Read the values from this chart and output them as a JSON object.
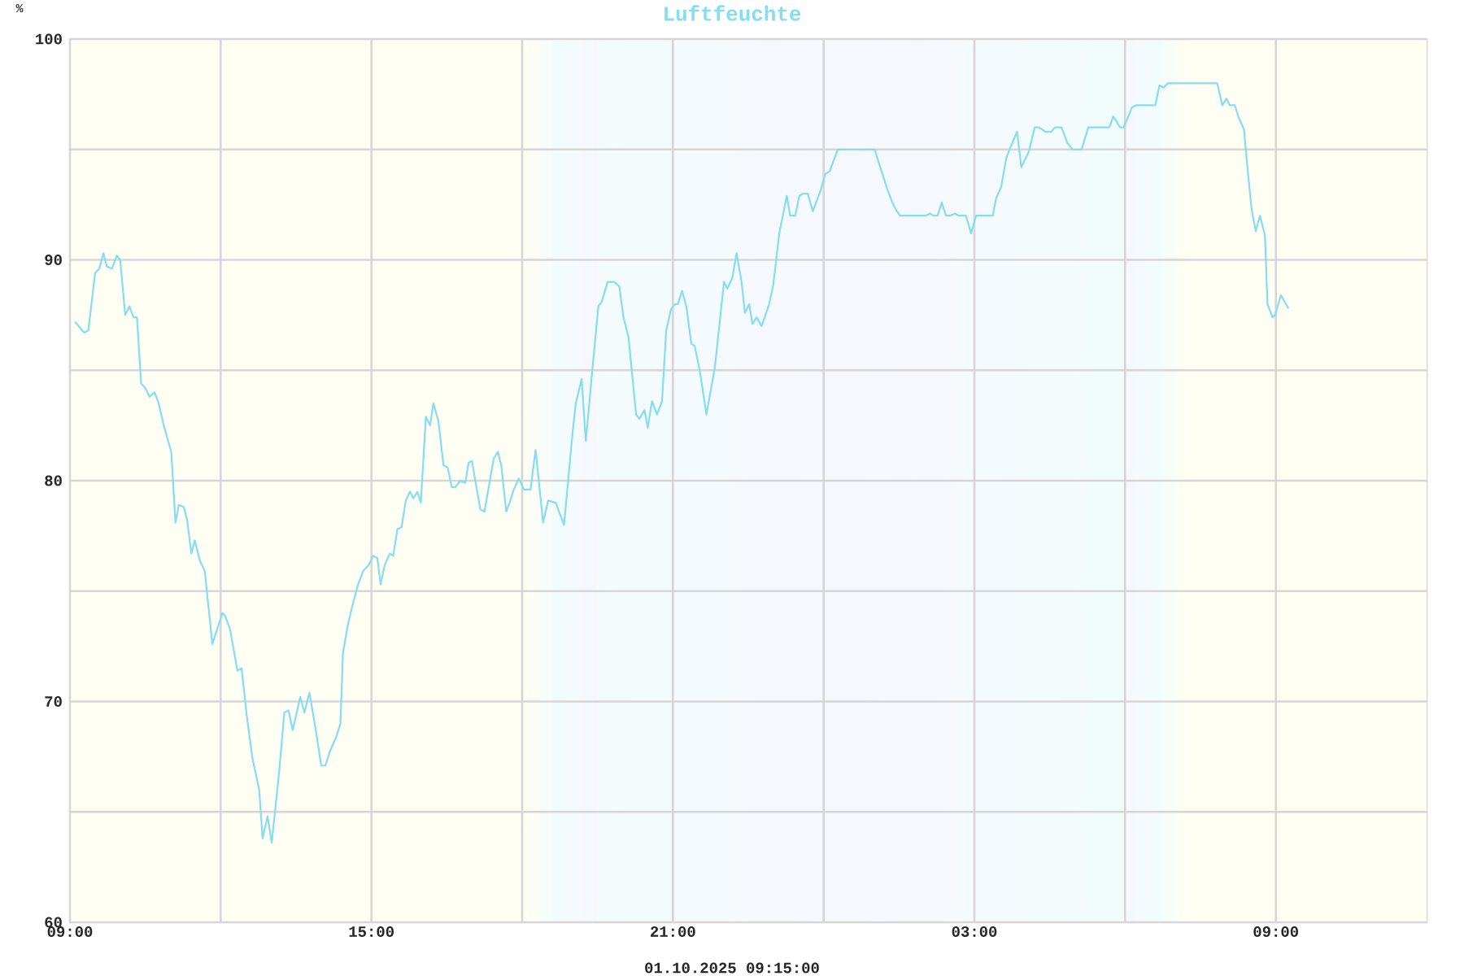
{
  "chart_data": {
    "type": "line",
    "title": "Luftfeuchte",
    "ylabel": "%",
    "xlabel": "01.10.2025 09:15:00",
    "color": "#86dcf2",
    "line_style": "solid",
    "grid": true,
    "xlim": [
      "2025-09-30T09:00",
      "2025-10-01T12:00"
    ],
    "xticks": [
      {
        "value": "2025-09-30T09:00",
        "label": "09:00"
      },
      {
        "value": "2025-09-30T12:00",
        "label": null
      },
      {
        "value": "2025-09-30T15:00",
        "label": "15:00"
      },
      {
        "value": "2025-09-30T18:00",
        "label": null
      },
      {
        "value": "2025-09-30T21:00",
        "label": "21:00"
      },
      {
        "value": "2025-10-01T00:00",
        "label": null
      },
      {
        "value": "2025-10-01T03:00",
        "label": "03:00"
      },
      {
        "value": "2025-10-01T06:00",
        "label": null
      },
      {
        "value": "2025-10-01T09:00",
        "label": "09:00"
      }
    ],
    "ylim": [
      60,
      100
    ],
    "yticks": [
      60,
      {
        "value": 65,
        "label": null
      },
      70,
      {
        "value": 75,
        "label": null
      },
      80,
      {
        "value": 85,
        "label": null
      },
      90,
      {
        "value": 95,
        "label": null
      },
      100
    ],
    "bands": [
      {
        "axis": "x",
        "from": "2025-09-30T09:00",
        "to": "2025-09-30T18:00",
        "color": "#fffff4"
      },
      {
        "axis": "x",
        "from": "2025-09-30T18:00",
        "to": "2025-09-30T19:30",
        "color": "#f3fcfc"
      },
      {
        "axis": "x",
        "from": "2025-09-30T19:30",
        "to": "2025-10-01T06:00",
        "color": "#f6f8fe"
      },
      {
        "axis": "x",
        "from": "2025-10-01T06:00",
        "to": "2025-10-01T07:18",
        "color": "#f3fcfc"
      },
      {
        "axis": "x",
        "from": "2025-10-01T07:18",
        "to": "2025-10-01T12:00",
        "color": "#fffff4"
      }
    ],
    "x": [
      "2025-09-30T09:06",
      "2025-09-30T09:17",
      "2025-09-30T09:22",
      "2025-09-30T09:30",
      "2025-09-30T09:35",
      "2025-09-30T09:40",
      "2025-09-30T09:44",
      "2025-09-30T09:50",
      "2025-09-30T09:56",
      "2025-09-30T10:00",
      "2025-09-30T10:06",
      "2025-09-30T10:11",
      "2025-09-30T10:16",
      "2025-09-30T10:20",
      "2025-09-30T10:25",
      "2025-09-30T10:30",
      "2025-09-30T10:35",
      "2025-09-30T10:41",
      "2025-09-30T10:46",
      "2025-09-30T10:52",
      "2025-09-30T11:01",
      "2025-09-30T11:06",
      "2025-09-30T11:10",
      "2025-09-30T11:16",
      "2025-09-30T11:20",
      "2025-09-30T11:25",
      "2025-09-30T11:29",
      "2025-09-30T11:35",
      "2025-09-30T11:41",
      "2025-09-30T11:50",
      "2025-09-30T11:56",
      "2025-09-30T12:02",
      "2025-09-30T12:05",
      "2025-09-30T12:11",
      "2025-09-30T12:20",
      "2025-09-30T12:25",
      "2025-09-30T12:31",
      "2025-09-30T12:38",
      "2025-09-30T12:46",
      "2025-09-30T12:50",
      "2025-09-30T12:56",
      "2025-09-30T13:01",
      "2025-09-30T13:10",
      "2025-09-30T13:16",
      "2025-09-30T13:21",
      "2025-09-30T13:26",
      "2025-09-30T13:35",
      "2025-09-30T13:40",
      "2025-09-30T13:46",
      "2025-09-30T13:54",
      "2025-09-30T14:00",
      "2025-09-30T14:05",
      "2025-09-30T14:11",
      "2025-09-30T14:18",
      "2025-09-30T14:23",
      "2025-09-30T14:26",
      "2025-09-30T14:32",
      "2025-09-30T14:37",
      "2025-09-30T14:44",
      "2025-09-30T14:50",
      "2025-09-30T14:57",
      "2025-09-30T15:02",
      "2025-09-30T15:07",
      "2025-09-30T15:11",
      "2025-09-30T15:16",
      "2025-09-30T15:22",
      "2025-09-30T15:26",
      "2025-09-30T15:31",
      "2025-09-30T15:36",
      "2025-09-30T15:41",
      "2025-09-30T15:46",
      "2025-09-30T15:50",
      "2025-09-30T15:55",
      "2025-09-30T15:59",
      "2025-09-30T16:05",
      "2025-09-30T16:10",
      "2025-09-30T16:14",
      "2025-09-30T16:20",
      "2025-09-30T16:26",
      "2025-09-30T16:31",
      "2025-09-30T16:36",
      "2025-09-30T16:40",
      "2025-09-30T16:46",
      "2025-09-30T16:52",
      "2025-09-30T16:56",
      "2025-09-30T17:00",
      "2025-09-30T17:10",
      "2025-09-30T17:15",
      "2025-09-30T17:26",
      "2025-09-30T17:31",
      "2025-09-30T17:35",
      "2025-09-30T17:41",
      "2025-09-30T17:45",
      "2025-09-30T17:50",
      "2025-09-30T17:56",
      "2025-09-30T18:02",
      "2025-09-30T18:10",
      "2025-09-30T18:16",
      "2025-09-30T18:25",
      "2025-09-30T18:31",
      "2025-09-30T18:40",
      "2025-09-30T18:50",
      "2025-09-30T19:00",
      "2025-09-30T19:04",
      "2025-09-30T19:11",
      "2025-09-30T19:16",
      "2025-09-30T19:24",
      "2025-09-30T19:31",
      "2025-09-30T19:35",
      "2025-09-30T19:42",
      "2025-09-30T19:50",
      "2025-09-30T19:56",
      "2025-09-30T20:01",
      "2025-09-30T20:07",
      "2025-09-30T20:16",
      "2025-09-30T20:20",
      "2025-09-30T20:26",
      "2025-09-30T20:30",
      "2025-09-30T20:35",
      "2025-09-30T20:41",
      "2025-09-30T20:47",
      "2025-09-30T20:52",
      "2025-09-30T20:58",
      "2025-09-30T21:03",
      "2025-09-30T21:06",
      "2025-09-30T21:11",
      "2025-09-30T21:16",
      "2025-09-30T21:22",
      "2025-09-30T21:26",
      "2025-09-30T21:32",
      "2025-09-30T21:40",
      "2025-09-30T21:50",
      "2025-09-30T22:01",
      "2025-09-30T22:05",
      "2025-09-30T22:11",
      "2025-09-30T22:16",
      "2025-09-30T22:22",
      "2025-09-30T22:26",
      "2025-09-30T22:31",
      "2025-09-30T22:35",
      "2025-09-30T22:40",
      "2025-09-30T22:46",
      "2025-09-30T22:55",
      "2025-09-30T23:00",
      "2025-09-30T23:07",
      "2025-09-30T23:16",
      "2025-09-30T23:20",
      "2025-09-30T23:26",
      "2025-09-30T23:31",
      "2025-09-30T23:35",
      "2025-09-30T23:41",
      "2025-09-30T23:47",
      "2025-09-30T23:51",
      "2025-09-30T23:56",
      "2025-10-01T00:02",
      "2025-10-01T00:07",
      "2025-10-01T00:12",
      "2025-10-01T00:17",
      "2025-10-01T01:01",
      "2025-10-01T01:05",
      "2025-10-01T01:16",
      "2025-10-01T01:22",
      "2025-10-01T01:26",
      "2025-10-01T01:31",
      "2025-10-01T02:02",
      "2025-10-01T02:07",
      "2025-10-01T02:11",
      "2025-10-01T02:16",
      "2025-10-01T02:21",
      "2025-10-01T02:26",
      "2025-10-01T02:31",
      "2025-10-01T02:37",
      "2025-10-01T02:41",
      "2025-10-01T02:50",
      "2025-10-01T02:56",
      "2025-10-01T03:02",
      "2025-10-01T03:22",
      "2025-10-01T03:26",
      "2025-10-01T03:32",
      "2025-10-01T03:38",
      "2025-10-01T03:43",
      "2025-10-01T03:51",
      "2025-10-01T03:56",
      "2025-10-01T04:05",
      "2025-10-01T04:12",
      "2025-10-01T04:17",
      "2025-10-01T04:25",
      "2025-10-01T04:32",
      "2025-10-01T04:36",
      "2025-10-01T04:44",
      "2025-10-01T04:51",
      "2025-10-01T04:57",
      "2025-10-01T05:08",
      "2025-10-01T05:16",
      "2025-10-01T05:41",
      "2025-10-01T05:46",
      "2025-10-01T05:54",
      "2025-10-01T05:58",
      "2025-10-01T06:04",
      "2025-10-01T06:08",
      "2025-10-01T06:13",
      "2025-10-01T06:36",
      "2025-10-01T06:41",
      "2025-10-01T06:46",
      "2025-10-01T06:51",
      "2025-10-01T07:50",
      "2025-10-01T07:56",
      "2025-10-01T08:01",
      "2025-10-01T08:05",
      "2025-10-01T08:11",
      "2025-10-01T08:15",
      "2025-10-01T08:22",
      "2025-10-01T08:26",
      "2025-10-01T08:31",
      "2025-10-01T08:36",
      "2025-10-01T08:41",
      "2025-10-01T08:47",
      "2025-10-01T08:50",
      "2025-10-01T08:56",
      "2025-10-01T08:59",
      "2025-10-01T09:06",
      "2025-10-01T09:15"
    ],
    "values": [
      87.2,
      86.7,
      86.8,
      89.4,
      89.6,
      90.3,
      89.7,
      89.6,
      90.2,
      90.0,
      87.5,
      87.9,
      87.4,
      87.4,
      84.4,
      84.2,
      83.8,
      84.0,
      83.5,
      82.5,
      81.3,
      78.1,
      78.9,
      78.8,
      78.2,
      76.7,
      77.3,
      76.4,
      75.9,
      72.6,
      73.3,
      74.0,
      73.9,
      73.3,
      71.4,
      71.5,
      69.4,
      67.4,
      66.0,
      63.8,
      64.8,
      63.6,
      66.9,
      69.5,
      69.6,
      68.7,
      70.2,
      69.5,
      70.4,
      68.6,
      67.1,
      67.1,
      67.8,
      68.4,
      69.0,
      72.2,
      73.5,
      74.3,
      75.3,
      75.9,
      76.2,
      76.6,
      76.5,
      75.3,
      76.2,
      76.7,
      76.6,
      77.8,
      77.9,
      79.1,
      79.5,
      79.2,
      79.5,
      79.0,
      82.9,
      82.5,
      83.5,
      82.7,
      80.7,
      80.6,
      79.7,
      79.7,
      80.0,
      79.9,
      80.8,
      80.9,
      78.7,
      78.6,
      81.0,
      81.3,
      80.7,
      78.6,
      79.0,
      79.6,
      80.1,
      79.6,
      79.6,
      81.4,
      78.1,
      79.1,
      79.0,
      78.0,
      82.1,
      83.5,
      84.6,
      81.8,
      85.1,
      87.9,
      88.1,
      89.0,
      89.0,
      88.8,
      87.4,
      86.5,
      83.0,
      82.8,
      83.2,
      82.4,
      83.6,
      83.0,
      83.6,
      86.8,
      87.8,
      88.0,
      88.0,
      88.6,
      87.9,
      86.2,
      86.1,
      85.0,
      83.0,
      85.1,
      89.0,
      88.7,
      89.2,
      90.3,
      89.0,
      87.6,
      88.0,
      87.1,
      87.4,
      87.0,
      88.0,
      88.9,
      91.2,
      92.9,
      92.0,
      92.0,
      92.9,
      93.0,
      93.0,
      92.2,
      92.6,
      93.1,
      93.9,
      94.0,
      94.5,
      95.0,
      95.0,
      94.5,
      93.2,
      92.6,
      92.3,
      92.0,
      92.0,
      92.1,
      92.0,
      92.0,
      92.6,
      92.0,
      92.0,
      92.1,
      92.0,
      92.0,
      91.2,
      92.0,
      92.0,
      92.8,
      93.3,
      94.6,
      95.1,
      95.8,
      94.2,
      94.9,
      96.0,
      96.0,
      95.8,
      95.8,
      96.0,
      96.0,
      95.3,
      95.0,
      95.0,
      96.0,
      96.0,
      96.5,
      96.0,
      96.0,
      96.5,
      96.9,
      97.0,
      97.0,
      97.9,
      97.8,
      98.0,
      98.0,
      97.0,
      97.3,
      97.0,
      97.0,
      96.5,
      95.9,
      94.2,
      92.3,
      91.3,
      92.0,
      91.1,
      88.0,
      87.4,
      87.5,
      88.4,
      87.8
    ]
  }
}
